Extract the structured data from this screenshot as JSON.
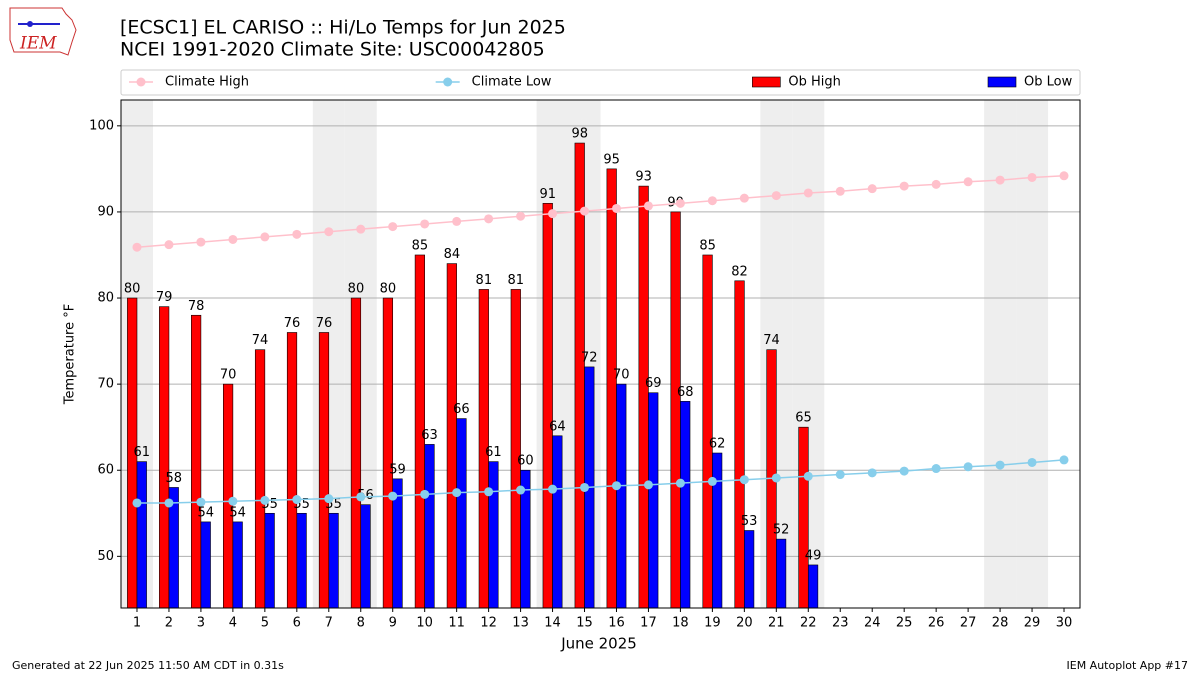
{
  "chart_data": {
    "type": "bar",
    "logo": "IEM",
    "title": "[ECSC1] EL CARISO :: Hi/Lo Temps for Jun 2025",
    "subtitle": "NCEI 1991-2020 Climate Site: USC00042805",
    "x_label": "June 2025",
    "y_label": "Temperature °F",
    "footer_left": "Generated at 22 Jun 2025 11:50 AM CDT in 0.31s",
    "footer_right": "IEM Autoplot App #17",
    "categories": [
      1,
      2,
      3,
      4,
      5,
      6,
      7,
      8,
      9,
      10,
      11,
      12,
      13,
      14,
      15,
      16,
      17,
      18,
      19,
      20,
      21,
      22,
      23,
      24,
      25,
      26,
      27,
      28,
      29,
      30
    ],
    "xlim": [
      0.5,
      30.5
    ],
    "ylim": [
      44,
      103
    ],
    "yticks": [
      50,
      60,
      70,
      80,
      90,
      100
    ],
    "grid": true,
    "shaded_days": [
      1,
      7,
      8,
      14,
      15,
      21,
      22,
      28,
      29
    ],
    "shade_color": "#eeeeee",
    "legend": "top",
    "series": [
      {
        "name": "Climate High",
        "type": "line",
        "color": "#ffc0cb",
        "values": [
          85.9,
          86.2,
          86.5,
          86.8,
          87.1,
          87.4,
          87.7,
          88.0,
          88.3,
          88.6,
          88.9,
          89.2,
          89.5,
          89.8,
          90.1,
          90.4,
          90.7,
          91.0,
          91.3,
          91.6,
          91.9,
          92.2,
          92.4,
          92.7,
          93.0,
          93.2,
          93.5,
          93.7,
          94.0,
          94.2
        ]
      },
      {
        "name": "Climate Low",
        "type": "line",
        "color": "#87ceeb",
        "values": [
          56.2,
          56.2,
          56.3,
          56.4,
          56.5,
          56.6,
          56.7,
          56.9,
          57.0,
          57.2,
          57.4,
          57.5,
          57.7,
          57.8,
          58.0,
          58.2,
          58.3,
          58.5,
          58.7,
          58.9,
          59.1,
          59.3,
          59.5,
          59.7,
          59.9,
          60.2,
          60.4,
          60.6,
          60.9,
          61.2
        ]
      },
      {
        "name": "Ob High",
        "type": "bar",
        "color": "#ff0000",
        "values": [
          80,
          79,
          78,
          70,
          74,
          76,
          76,
          80,
          80,
          85,
          84,
          81,
          81,
          91,
          98,
          95,
          93,
          90,
          85,
          82,
          74,
          65,
          null,
          null,
          null,
          null,
          null,
          null,
          null,
          null
        ]
      },
      {
        "name": "Ob Low",
        "type": "bar",
        "color": "#0000ff",
        "values": [
          61,
          58,
          54,
          54,
          55,
          55,
          55,
          56,
          59,
          63,
          66,
          61,
          60,
          64,
          72,
          70,
          69,
          68,
          62,
          53,
          52,
          49,
          null,
          null,
          null,
          null,
          null,
          null,
          null,
          null
        ]
      }
    ]
  }
}
